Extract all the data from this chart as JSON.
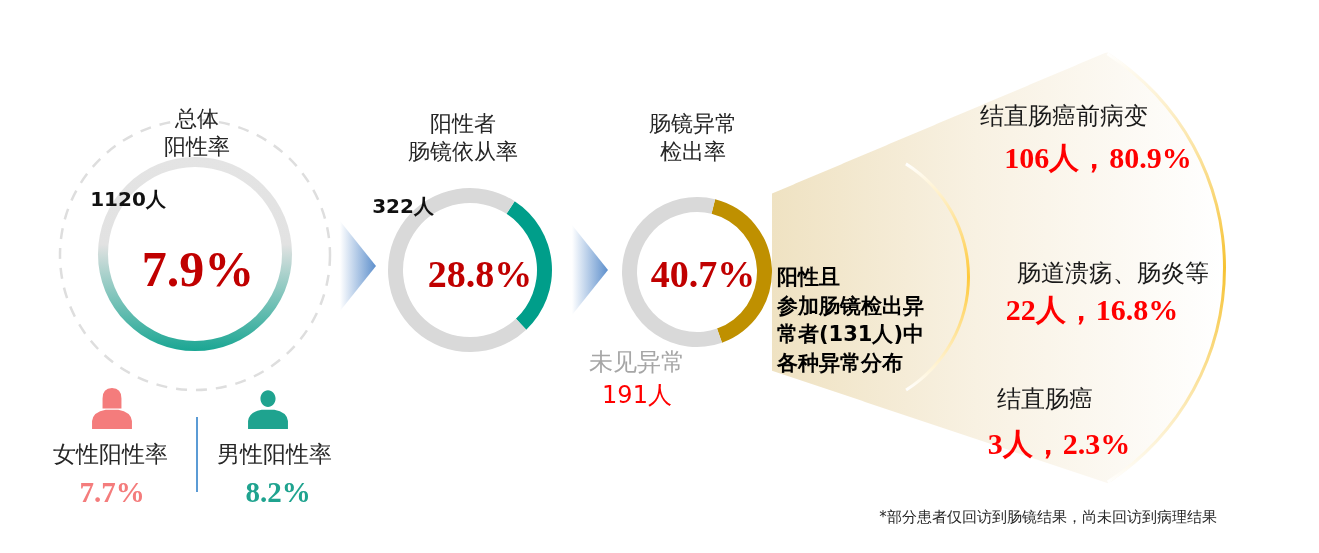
{
  "chart_data": [
    {
      "type": "other",
      "title": "总体阳性率",
      "annotations": [
        "1120人",
        "7.9%"
      ],
      "categories": [
        "女性阳性率",
        "男性阳性率"
      ],
      "value_labels": [
        "7.7%",
        "8.2%"
      ],
      "colors": [
        "#f47c7c",
        "#1fa38f"
      ]
    },
    {
      "type": "donut",
      "title": "阳性者肠镜依从率",
      "categories": [
        null,
        null
      ],
      "values": [
        28.8,
        71.2
      ],
      "colors": [
        "#009e8a",
        "#d9d9d9"
      ],
      "annotations": [
        "322人",
        "28.8%"
      ]
    },
    {
      "type": "donut",
      "title": "肠镜异常检出率",
      "categories": [
        null,
        "未见异常"
      ],
      "values": [
        40.7,
        59.3
      ],
      "colors": [
        "#bf9000",
        "#d9d9d9"
      ],
      "annotations": [
        "40.7%",
        "191人"
      ]
    },
    {
      "type": "other",
      "title": "阳性且参加肠镜检出异常者(131人)中各种异常分布",
      "categories": [
        "结直肠癌前病变",
        "肠道溃疡、肠炎等",
        "结直肠癌"
      ],
      "value_labels": [
        "106人，80.9%",
        "22人，16.8%",
        "3人，2.3%"
      ],
      "annotations": [
        "*部分患者仅回访到肠镜结果，尚未回访到病理结果"
      ]
    }
  ]
}
